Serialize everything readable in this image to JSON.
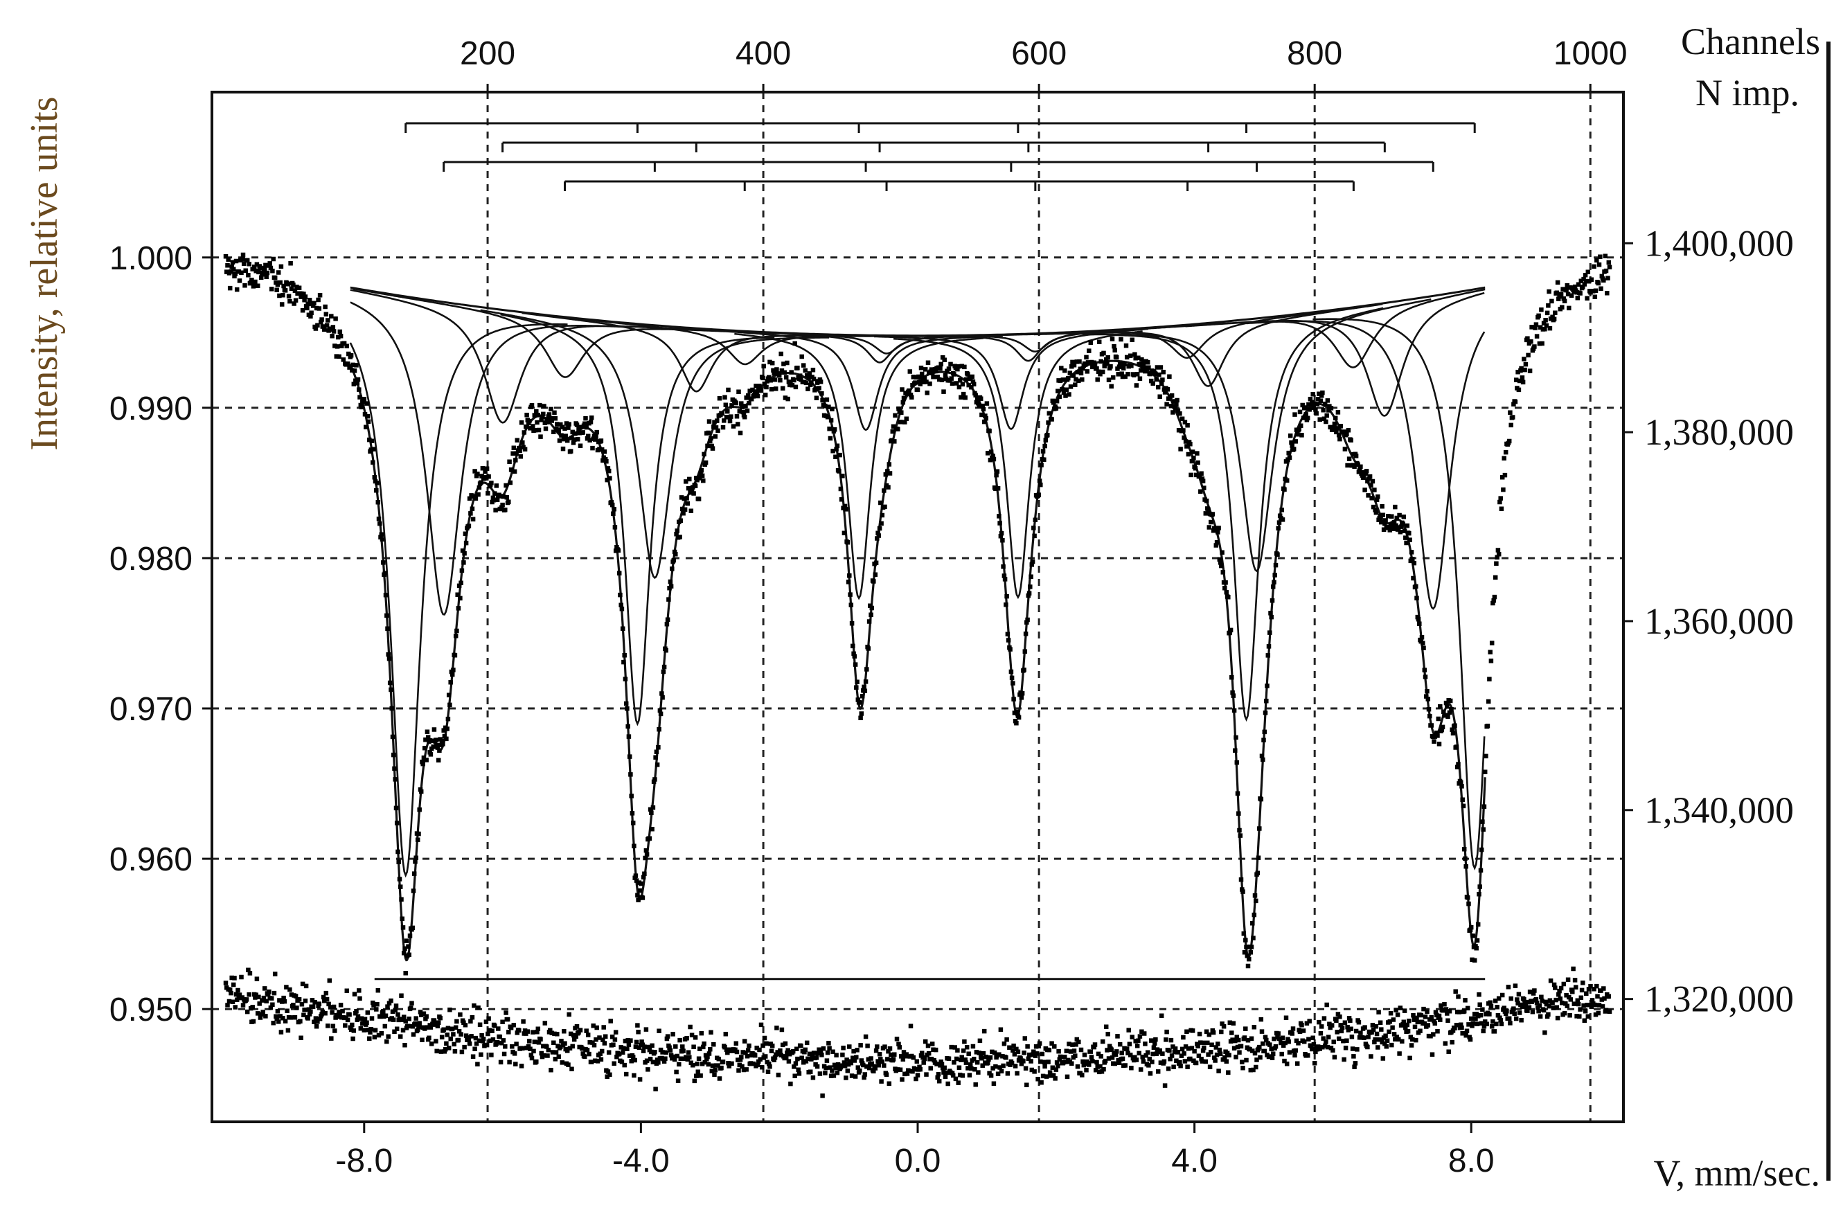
{
  "chart_data": {
    "type": "line",
    "title": "",
    "xlabel": "V, mm/sec.",
    "ylabel": "Intensity, relative units",
    "y2label": "N imp.",
    "x2label": "Channels",
    "xlim": [
      -10.2,
      10.2
    ],
    "ylim": [
      0.9425,
      1.011
    ],
    "x_ticks": [
      "-8.0",
      "-4.0",
      "0.0",
      "4.0",
      "8.0"
    ],
    "x_tick_values": [
      -8,
      -4,
      0,
      4,
      8
    ],
    "y_ticks": [
      "1.000",
      "0.990",
      "0.980",
      "0.970",
      "0.960",
      "0.950"
    ],
    "y_tick_values": [
      1.0,
      0.99,
      0.98,
      0.97,
      0.96,
      0.95
    ],
    "channel_ticks": [
      "200",
      "400",
      "600",
      "800",
      "1000"
    ],
    "channel_tick_values": [
      200,
      400,
      600,
      800,
      1000
    ],
    "channel_range": [
      0,
      1024
    ],
    "count_ticks": [
      "1,400,000",
      "1,380,000",
      "1,360,000",
      "1,340,000",
      "1,320,000"
    ],
    "count_tick_values": [
      1400000,
      1380000,
      1360000,
      1340000,
      1320000
    ],
    "count_range": [
      1307000,
      1416000
    ],
    "grid": true,
    "baseline": {
      "edge_x": 8.2,
      "edge_y": 0.998,
      "center_y": 0.9948
    },
    "residual_level": 0.952,
    "residual_range": [
      -7.85,
      8.2
    ],
    "sextets": [
      {
        "name": "",
        "lines": [
          {
            "x": -7.4,
            "depth": 0.0385,
            "width": 0.26
          },
          {
            "x": -4.05,
            "depth": 0.0266,
            "width": 0.22
          },
          {
            "x": -0.85,
            "depth": 0.0175,
            "width": 0.2
          },
          {
            "x": 1.45,
            "depth": 0.0175,
            "width": 0.2
          },
          {
            "x": 4.75,
            "depth": 0.0266,
            "width": 0.22
          },
          {
            "x": 8.05,
            "depth": 0.0385,
            "width": 0.26
          }
        ]
      },
      {
        "name": "",
        "lines": [
          {
            "x": -6.85,
            "depth": 0.0208,
            "width": 0.3
          },
          {
            "x": -3.8,
            "depth": 0.0168,
            "width": 0.28
          },
          {
            "x": -0.75,
            "depth": 0.0063,
            "width": 0.22
          },
          {
            "x": 1.35,
            "depth": 0.0063,
            "width": 0.22
          },
          {
            "x": 4.9,
            "depth": 0.0168,
            "width": 0.28
          },
          {
            "x": 7.45,
            "depth": 0.0208,
            "width": 0.3
          }
        ]
      },
      {
        "name": "",
        "lines": [
          {
            "x": -6.0,
            "depth": 0.0075,
            "width": 0.32
          },
          {
            "x": -3.2,
            "depth": 0.0042,
            "width": 0.28
          },
          {
            "x": -0.55,
            "depth": 0.0018,
            "width": 0.22
          },
          {
            "x": 1.6,
            "depth": 0.0018,
            "width": 0.22
          },
          {
            "x": 4.2,
            "depth": 0.0042,
            "width": 0.28
          },
          {
            "x": 6.75,
            "depth": 0.0075,
            "width": 0.32
          }
        ]
      },
      {
        "name": "",
        "lines": [
          {
            "x": -5.1,
            "depth": 0.004,
            "width": 0.34
          },
          {
            "x": -2.5,
            "depth": 0.0022,
            "width": 0.3
          },
          {
            "x": -0.45,
            "depth": 0.0012,
            "width": 0.22
          },
          {
            "x": 1.7,
            "depth": 0.0012,
            "width": 0.22
          },
          {
            "x": 3.9,
            "depth": 0.0022,
            "width": 0.3
          },
          {
            "x": 6.3,
            "depth": 0.004,
            "width": 0.34
          }
        ]
      }
    ],
    "stick_diagrams": [
      {
        "bar_x": [
          -7.4,
          8.05
        ],
        "line_x": [
          -7.4,
          -4.05,
          -0.85,
          1.45,
          4.75,
          8.05
        ]
      },
      {
        "bar_x": [
          -6.0,
          6.75
        ],
        "line_x": [
          -6.0,
          -3.2,
          -0.55,
          1.6,
          4.2,
          6.75
        ]
      },
      {
        "bar_x": [
          -6.85,
          7.45
        ],
        "line_x": [
          -6.85,
          -3.8,
          -0.75,
          1.35,
          4.9,
          7.45
        ]
      },
      {
        "bar_x": [
          -5.1,
          6.3
        ],
        "line_x": [
          -5.1,
          -2.5,
          -0.45,
          1.7,
          3.9,
          6.3
        ]
      }
    ]
  }
}
